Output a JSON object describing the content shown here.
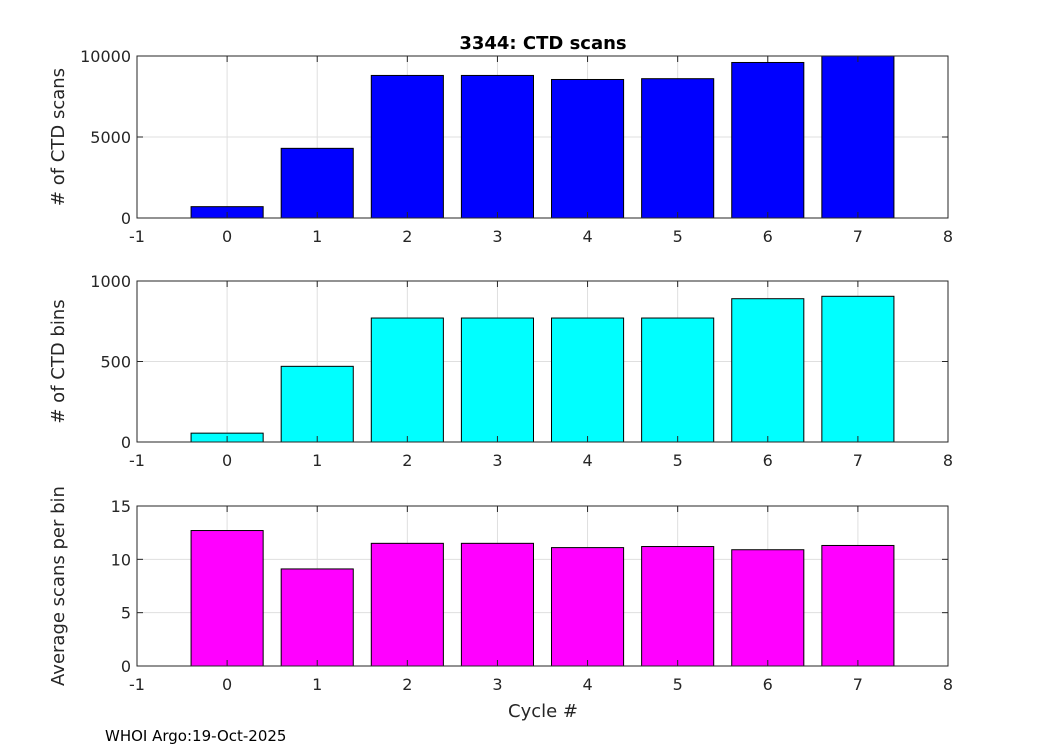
{
  "figure_title": "3344: CTD scans",
  "footer": "WHOI Argo:19-Oct-2025",
  "chart_data": [
    {
      "type": "bar",
      "title": "3344: CTD scans",
      "xlabel": "",
      "ylabel": "# of CTD scans",
      "color": "#0000ff",
      "categories": [
        0,
        1,
        2,
        3,
        4,
        5,
        6,
        7
      ],
      "values": [
        700,
        4300,
        8800,
        8800,
        8550,
        8600,
        9600,
        10150
      ],
      "xlim": [
        -1,
        8
      ],
      "ylim": [
        0,
        10000
      ],
      "xticks": [
        "-1",
        "0",
        "1",
        "2",
        "3",
        "4",
        "5",
        "6",
        "7",
        "8"
      ],
      "yticks": [
        "0",
        "5000",
        "10000"
      ],
      "grid": true
    },
    {
      "type": "bar",
      "title": "",
      "xlabel": "",
      "ylabel": "# of CTD bins",
      "color": "#00ffff",
      "categories": [
        0,
        1,
        2,
        3,
        4,
        5,
        6,
        7
      ],
      "values": [
        55,
        470,
        770,
        770,
        770,
        770,
        890,
        905
      ],
      "xlim": [
        -1,
        8
      ],
      "ylim": [
        0,
        1000
      ],
      "xticks": [
        "-1",
        "0",
        "1",
        "2",
        "3",
        "4",
        "5",
        "6",
        "7",
        "8"
      ],
      "yticks": [
        "0",
        "500",
        "1000"
      ],
      "grid": true
    },
    {
      "type": "bar",
      "title": "",
      "xlabel": "Cycle #",
      "ylabel": "Average scans per bin",
      "color": "#ff00ff",
      "categories": [
        0,
        1,
        2,
        3,
        4,
        5,
        6,
        7
      ],
      "values": [
        12.7,
        9.1,
        11.5,
        11.5,
        11.1,
        11.2,
        10.9,
        11.3
      ],
      "xlim": [
        -1,
        8
      ],
      "ylim": [
        0,
        15
      ],
      "xticks": [
        "-1",
        "0",
        "1",
        "2",
        "3",
        "4",
        "5",
        "6",
        "7",
        "8"
      ],
      "yticks": [
        "0",
        "5",
        "10",
        "15"
      ],
      "grid": true
    }
  ]
}
